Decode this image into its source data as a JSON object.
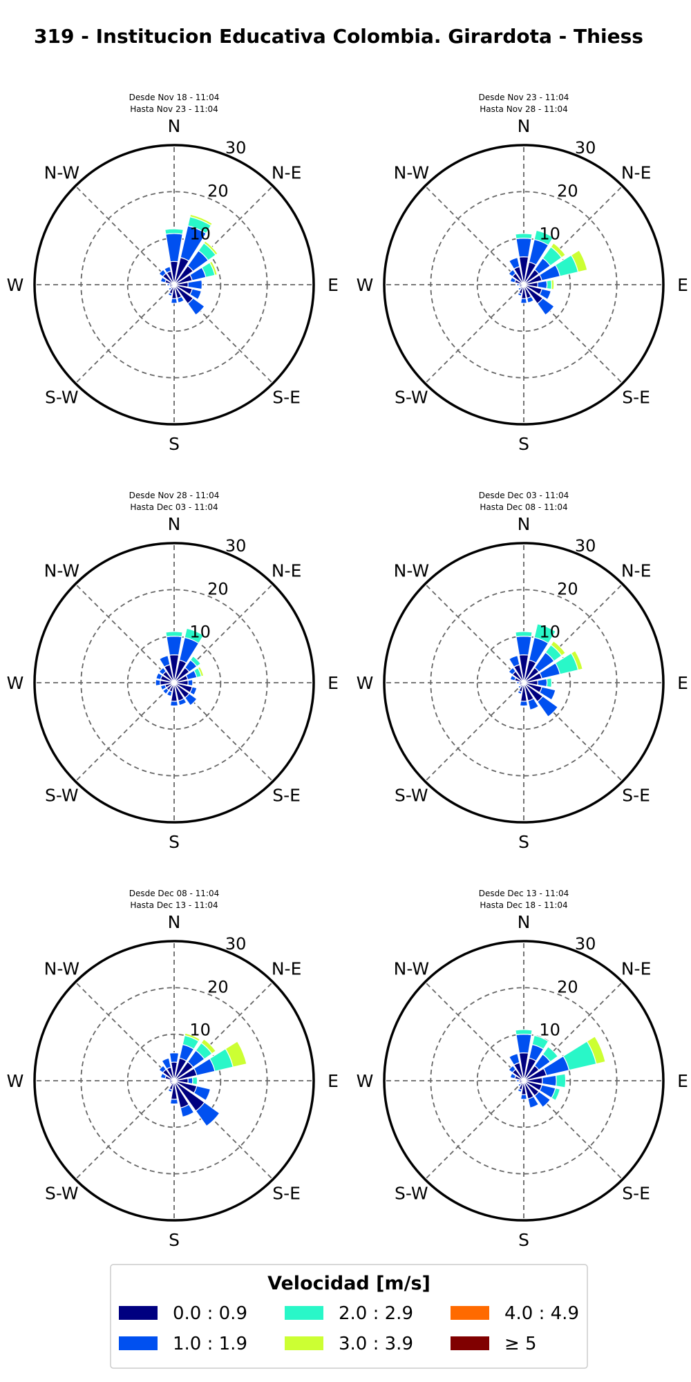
{
  "chart_data": {
    "type": "windrose",
    "title": "319 - Institucion Educativa Colombia. Girardota - Thiess",
    "directions": [
      "N",
      "NNE",
      "NE",
      "ENE",
      "E",
      "ESE",
      "SE",
      "SSE",
      "S",
      "SSW",
      "SW",
      "WSW",
      "W",
      "WNW",
      "NW",
      "NNW"
    ],
    "compass_labels": [
      "N",
      "N-E",
      "E",
      "S-E",
      "S",
      "S-W",
      "W",
      "N-W"
    ],
    "radial_ticks": [
      10,
      20,
      30
    ],
    "rmax": 30,
    "legend": {
      "title": "Velocidad [m/s]",
      "entries": [
        {
          "label": "0.0 : 0.9",
          "color": "#000080"
        },
        {
          "label": "1.0 : 1.9",
          "color": "#0050f0"
        },
        {
          "label": "2.0 : 2.9",
          "color": "#29f7c8"
        },
        {
          "label": "3.0 : 3.9",
          "color": "#ccff33"
        },
        {
          "label": "4.0 : 4.9",
          "color": "#ff6a00"
        },
        {
          "label": "≥  5",
          "color": "#800000"
        }
      ]
    },
    "panels": [
      {
        "subtitle": [
          "Desde Nov 18 - 11:04",
          "Hasta Nov 23 - 11:04"
        ],
        "segments": [
          [
            5,
            6,
            1,
            0,
            0,
            0
          ],
          [
            6,
            7,
            2,
            0.5,
            0,
            0
          ],
          [
            5,
            4,
            2,
            0.5,
            0,
            0
          ],
          [
            4,
            3,
            2,
            0.5,
            0,
            0
          ],
          [
            3,
            3,
            0,
            0,
            0,
            0
          ],
          [
            4,
            2,
            0,
            0,
            0,
            0
          ],
          [
            5,
            3,
            0,
            0,
            0,
            0
          ],
          [
            3,
            1,
            0,
            0,
            0,
            0
          ],
          [
            3,
            1,
            0,
            0,
            0,
            0
          ],
          [
            2,
            0.5,
            0,
            0,
            0,
            0
          ],
          [
            1,
            0.5,
            0,
            0,
            0,
            0
          ],
          [
            1,
            0,
            0,
            0,
            0,
            0
          ],
          [
            1,
            0.5,
            0,
            0,
            0,
            0
          ],
          [
            2,
            1,
            0,
            0,
            0,
            0
          ],
          [
            3,
            1,
            0,
            0,
            0,
            0
          ],
          [
            3,
            1,
            0,
            0,
            0,
            0
          ]
        ]
      },
      {
        "subtitle": [
          "Desde Nov 23 - 11:04",
          "Hasta Nov 28 - 11:04"
        ],
        "segments": [
          [
            6,
            4,
            1,
            0,
            0,
            0
          ],
          [
            5,
            5,
            2,
            0,
            0,
            0
          ],
          [
            4,
            3,
            3,
            1,
            0,
            0
          ],
          [
            4,
            4,
            4,
            2,
            0,
            0
          ],
          [
            3,
            2,
            1,
            0.5,
            0,
            0
          ],
          [
            4,
            2,
            0,
            0,
            0,
            0
          ],
          [
            5,
            3,
            0,
            0,
            0,
            0
          ],
          [
            3,
            1,
            0,
            0,
            0,
            0
          ],
          [
            3,
            1,
            0,
            0,
            0,
            0
          ],
          [
            2,
            0.5,
            0,
            0,
            0,
            0
          ],
          [
            1,
            0.5,
            0,
            0,
            0,
            0
          ],
          [
            1,
            0,
            0,
            0,
            0,
            0
          ],
          [
            1,
            0.5,
            0,
            0,
            0,
            0
          ],
          [
            2,
            1,
            0,
            0,
            0,
            0
          ],
          [
            3,
            1,
            0,
            0,
            0,
            0
          ],
          [
            4,
            2,
            0,
            0,
            0,
            0
          ]
        ]
      },
      {
        "subtitle": [
          "Desde Nov 28 - 11:04",
          "Hasta Dec 03 - 11:04"
        ],
        "segments": [
          [
            6,
            4,
            1,
            0,
            0,
            0
          ],
          [
            5,
            5,
            2,
            0,
            0,
            0
          ],
          [
            4,
            2,
            1,
            0,
            0,
            0
          ],
          [
            3,
            2,
            1,
            0.5,
            0,
            0
          ],
          [
            3,
            1,
            0,
            0,
            0,
            0
          ],
          [
            4,
            1,
            0,
            0,
            0,
            0
          ],
          [
            4,
            2,
            0,
            0,
            0,
            0
          ],
          [
            4,
            1,
            0,
            0,
            0,
            0
          ],
          [
            4,
            1,
            0,
            0,
            0,
            0
          ],
          [
            2,
            1,
            0,
            0,
            0,
            0
          ],
          [
            2,
            1,
            0,
            0,
            0,
            0
          ],
          [
            2,
            1,
            0,
            0,
            0,
            0
          ],
          [
            3,
            1,
            0,
            0,
            0,
            0
          ],
          [
            3,
            1,
            0,
            0,
            0,
            0
          ],
          [
            3,
            1,
            0,
            0,
            0,
            0
          ],
          [
            4,
            2,
            0,
            0,
            0,
            0
          ]
        ]
      },
      {
        "subtitle": [
          "Desde Dec 03 - 11:04",
          "Hasta Dec 08 - 11:04"
        ],
        "segments": [
          [
            6,
            4,
            1,
            0,
            0,
            0
          ],
          [
            5,
            5,
            3,
            0,
            0,
            0
          ],
          [
            4,
            4,
            2,
            1,
            0,
            0
          ],
          [
            4,
            4,
            4,
            1,
            0,
            0
          ],
          [
            3,
            2,
            1,
            0,
            0,
            0
          ],
          [
            4,
            3,
            0,
            0,
            0,
            0
          ],
          [
            5,
            4,
            0,
            0,
            0,
            0
          ],
          [
            4,
            2,
            0,
            0,
            0,
            0
          ],
          [
            4,
            1,
            0,
            0,
            0,
            0
          ],
          [
            2,
            0.5,
            0,
            0,
            0,
            0
          ],
          [
            1,
            0.5,
            0,
            0,
            0,
            0
          ],
          [
            1,
            0,
            0,
            0,
            0,
            0
          ],
          [
            1,
            0.5,
            0,
            0,
            0,
            0
          ],
          [
            2,
            1,
            0,
            0,
            0,
            0
          ],
          [
            3,
            1,
            0,
            0,
            0,
            0
          ],
          [
            4,
            2,
            0,
            0,
            0,
            0
          ]
        ]
      },
      {
        "subtitle": [
          "Desde Dec 08 - 11:04",
          "Hasta Dec 13 - 11:04"
        ],
        "segments": [
          [
            4,
            2,
            0,
            0,
            0,
            0
          ],
          [
            5,
            3,
            2,
            0.5,
            0,
            0
          ],
          [
            5,
            3,
            2,
            1,
            0,
            0
          ],
          [
            5,
            4,
            4,
            3,
            0,
            0
          ],
          [
            3,
            1,
            1,
            0,
            0,
            0
          ],
          [
            5,
            3,
            0,
            0,
            0,
            0
          ],
          [
            8,
            4,
            0,
            0,
            0,
            0
          ],
          [
            6,
            2,
            0,
            0,
            0,
            0
          ],
          [
            4,
            1,
            0,
            0,
            0,
            0
          ],
          [
            2,
            0.5,
            0,
            0,
            0,
            0
          ],
          [
            1,
            0,
            0,
            0,
            0,
            0
          ],
          [
            1,
            0,
            0,
            0,
            0,
            0
          ],
          [
            1,
            0,
            0,
            0,
            0,
            0
          ],
          [
            2,
            1,
            0,
            0,
            0,
            0
          ],
          [
            3,
            1,
            0,
            0,
            0,
            0
          ],
          [
            3,
            2,
            0,
            0,
            0,
            0
          ]
        ]
      },
      {
        "subtitle": [
          "Desde Dec 13 - 11:04",
          "Hasta Dec 18 - 11:04"
        ],
        "segments": [
          [
            6,
            4,
            1,
            0,
            0,
            0
          ],
          [
            5,
            3,
            2,
            0,
            0,
            0
          ],
          [
            4,
            3,
            2,
            0,
            0,
            0
          ],
          [
            5,
            5,
            6,
            2,
            0,
            0
          ],
          [
            4,
            3,
            2,
            0,
            0,
            0
          ],
          [
            4,
            3,
            1,
            0,
            0,
            0
          ],
          [
            4,
            3,
            0,
            0,
            0,
            0
          ],
          [
            4,
            2,
            0,
            0,
            0,
            0
          ],
          [
            3,
            1,
            0,
            0,
            0,
            0
          ],
          [
            2,
            0.5,
            0,
            0,
            0,
            0
          ],
          [
            1,
            0.5,
            0,
            0,
            0,
            0
          ],
          [
            1,
            0,
            0,
            0,
            0,
            0
          ],
          [
            1,
            0.5,
            0,
            0,
            0,
            0
          ],
          [
            2,
            1,
            0,
            0,
            0,
            0
          ],
          [
            3,
            1,
            0,
            0,
            0,
            0
          ],
          [
            4,
            2,
            0,
            0,
            0,
            0
          ]
        ]
      }
    ]
  }
}
